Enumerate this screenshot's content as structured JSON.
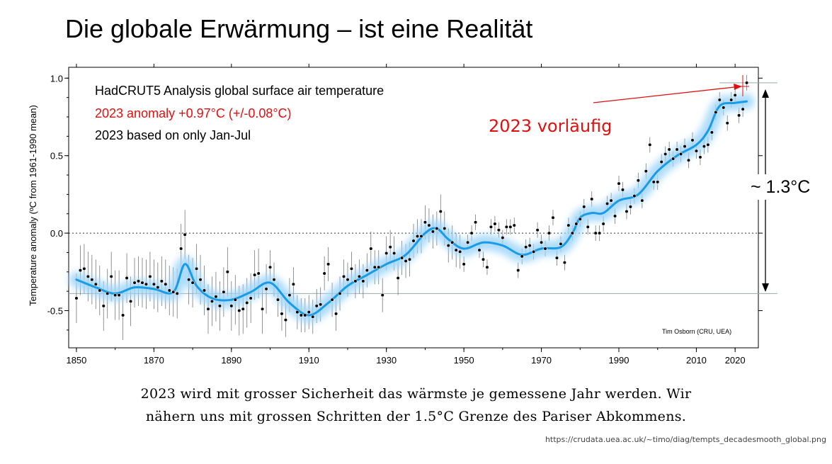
{
  "slide": {
    "title": "Die globale Erwärmung – ist eine Realität",
    "caption_line1": "2023 wird mit grosser Sicherheit das wärmste je gemessene Jahr werden. Wir",
    "caption_line2": "nähern uns mit grossen Schritten der 1.5°C Grenze des Pariser Abkommens.",
    "source_url": "https://crudata.uea.ac.uk/~timo/diag/tempts_decadesmooth_global.png"
  },
  "chart_data": {
    "type": "scatter",
    "title": "HadCRUT5 Analysis global surface air temperature",
    "subtitle_red": "2023 anomaly +0.97°C (+/-0.08°C)",
    "subtitle2": "2023 based on only Jan-Jul",
    "ylabel": "Temperature anomaly (ºC from 1961-1990 mean)",
    "credit": "Tim Osborn (CRU, UEA)",
    "xlim": [
      1848,
      2026
    ],
    "ylim": [
      -0.74,
      1.07
    ],
    "xticks": [
      1850,
      1870,
      1890,
      1910,
      1930,
      1950,
      1970,
      1990,
      2010,
      2020
    ],
    "yticks": [
      -0.5,
      0.0,
      0.5,
      1.0
    ],
    "ytick_labels": [
      "-0.5",
      "0.0",
      "0.5",
      "1.0"
    ],
    "grid": false,
    "zero_line": 0.0,
    "baseline_line": -0.39,
    "colors": {
      "smooth": "#1a9be8",
      "band": "#9fd6fa",
      "points": "#000000",
      "annotation": "#e01010",
      "refline": "#9aa9a9"
    },
    "annual": {
      "years": [
        1850,
        1851,
        1852,
        1853,
        1854,
        1855,
        1856,
        1857,
        1858,
        1859,
        1860,
        1861,
        1862,
        1863,
        1864,
        1865,
        1866,
        1867,
        1868,
        1869,
        1870,
        1871,
        1872,
        1873,
        1874,
        1875,
        1876,
        1877,
        1878,
        1879,
        1880,
        1881,
        1882,
        1883,
        1884,
        1885,
        1886,
        1887,
        1888,
        1889,
        1890,
        1891,
        1892,
        1893,
        1894,
        1895,
        1896,
        1897,
        1898,
        1899,
        1900,
        1901,
        1902,
        1903,
        1904,
        1905,
        1906,
        1907,
        1908,
        1909,
        1910,
        1911,
        1912,
        1913,
        1914,
        1915,
        1916,
        1917,
        1918,
        1919,
        1920,
        1921,
        1922,
        1923,
        1924,
        1925,
        1926,
        1927,
        1928,
        1929,
        1930,
        1931,
        1932,
        1933,
        1934,
        1935,
        1936,
        1937,
        1938,
        1939,
        1940,
        1941,
        1942,
        1943,
        1944,
        1945,
        1946,
        1947,
        1948,
        1949,
        1950,
        1951,
        1952,
        1953,
        1954,
        1955,
        1956,
        1957,
        1958,
        1959,
        1960,
        1961,
        1962,
        1963,
        1964,
        1965,
        1966,
        1967,
        1968,
        1969,
        1970,
        1971,
        1972,
        1973,
        1974,
        1975,
        1976,
        1977,
        1978,
        1979,
        1980,
        1981,
        1982,
        1983,
        1984,
        1985,
        1986,
        1987,
        1988,
        1989,
        1990,
        1991,
        1992,
        1993,
        1994,
        1995,
        1996,
        1997,
        1998,
        1999,
        2000,
        2001,
        2002,
        2003,
        2004,
        2005,
        2006,
        2007,
        2008,
        2009,
        2010,
        2011,
        2012,
        2013,
        2014,
        2015,
        2016,
        2017,
        2018,
        2019,
        2020,
        2021,
        2022,
        2023
      ],
      "values": [
        -0.42,
        -0.24,
        -0.23,
        -0.28,
        -0.3,
        -0.33,
        -0.37,
        -0.47,
        -0.39,
        -0.28,
        -0.4,
        -0.4,
        -0.53,
        -0.29,
        -0.44,
        -0.32,
        -0.31,
        -0.32,
        -0.33,
        -0.28,
        -0.33,
        -0.35,
        -0.31,
        -0.33,
        -0.37,
        -0.38,
        -0.39,
        -0.1,
        -0.01,
        -0.3,
        -0.32,
        -0.23,
        -0.3,
        -0.37,
        -0.49,
        -0.44,
        -0.41,
        -0.47,
        -0.38,
        -0.25,
        -0.47,
        -0.43,
        -0.5,
        -0.49,
        -0.45,
        -0.42,
        -0.27,
        -0.26,
        -0.49,
        -0.36,
        -0.22,
        -0.3,
        -0.43,
        -0.52,
        -0.56,
        -0.4,
        -0.33,
        -0.51,
        -0.53,
        -0.53,
        -0.51,
        -0.54,
        -0.47,
        -0.46,
        -0.26,
        -0.2,
        -0.43,
        -0.52,
        -0.39,
        -0.28,
        -0.3,
        -0.23,
        -0.31,
        -0.28,
        -0.31,
        -0.24,
        -0.1,
        -0.22,
        -0.22,
        -0.4,
        -0.13,
        -0.09,
        -0.13,
        -0.29,
        -0.16,
        -0.18,
        -0.17,
        -0.05,
        -0.02,
        -0.02,
        0.07,
        0.05,
        0.01,
        0.03,
        0.14,
        0.03,
        -0.08,
        -0.06,
        -0.11,
        -0.12,
        -0.2,
        -0.06,
        0.0,
        0.07,
        -0.11,
        -0.17,
        -0.22,
        0.04,
        0.06,
        0.02,
        -0.03,
        0.04,
        0.04,
        0.05,
        -0.24,
        -0.15,
        -0.09,
        -0.08,
        -0.12,
        0.02,
        -0.06,
        -0.1,
        0.0,
        0.1,
        -0.16,
        -0.07,
        -0.19,
        0.05,
        0.0,
        0.06,
        0.09,
        0.17,
        0.04,
        0.22,
        0.0,
        0.0,
        0.06,
        0.19,
        0.21,
        0.11,
        0.32,
        0.28,
        0.14,
        0.17,
        0.24,
        0.34,
        0.21,
        0.4,
        0.57,
        0.33,
        0.33,
        0.46,
        0.51,
        0.54,
        0.48,
        0.54,
        0.51,
        0.56,
        0.47,
        0.6,
        0.53,
        0.49,
        0.56,
        0.57,
        0.65,
        0.78,
        0.86,
        0.81,
        0.71,
        0.86,
        0.89,
        0.76,
        0.8,
        0.97
      ]
    },
    "smoothed": {
      "years": [
        1850,
        1855,
        1860,
        1865,
        1870,
        1875,
        1878,
        1881,
        1885,
        1890,
        1895,
        1900,
        1905,
        1910,
        1915,
        1920,
        1925,
        1930,
        1935,
        1940,
        1943,
        1946,
        1950,
        1955,
        1960,
        1965,
        1970,
        1975,
        1978,
        1980,
        1983,
        1986,
        1990,
        1995,
        2000,
        2005,
        2010,
        2013,
        2016,
        2020,
        2023
      ],
      "values": [
        -0.3,
        -0.35,
        -0.39,
        -0.35,
        -0.36,
        -0.38,
        -0.2,
        -0.34,
        -0.42,
        -0.43,
        -0.38,
        -0.32,
        -0.45,
        -0.53,
        -0.45,
        -0.34,
        -0.27,
        -0.2,
        -0.14,
        0.0,
        0.03,
        -0.04,
        -0.1,
        -0.06,
        -0.08,
        -0.14,
        -0.1,
        -0.09,
        0.0,
        0.1,
        0.13,
        0.13,
        0.21,
        0.25,
        0.4,
        0.5,
        0.57,
        0.66,
        0.82,
        0.84,
        0.85
      ]
    },
    "annotations": {
      "vorlaeufig": "2023 vorläufig",
      "range_label": "~ 1.3°C"
    }
  }
}
